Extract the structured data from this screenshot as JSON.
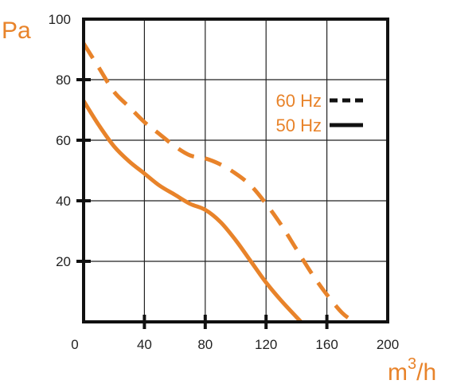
{
  "chart_data": {
    "type": "line",
    "ylabel": "Pa",
    "xlabel_base": "m",
    "xlabel_exp": "3",
    "xlabel_tail": "/h",
    "xlim": [
      0,
      200
    ],
    "ylim": [
      0,
      100
    ],
    "x_ticks": [
      0,
      40,
      80,
      120,
      160,
      200
    ],
    "y_ticks": [
      20,
      40,
      60,
      80,
      100
    ],
    "grid": true,
    "legend_position": "top-right",
    "colors": {
      "curve": "#e8832a",
      "accent_text": "#e8832a",
      "axis": "#111111",
      "grid": "#222222"
    },
    "series": [
      {
        "name": "60 Hz",
        "style": "dashed",
        "x": [
          0,
          10,
          20,
          30,
          40,
          50,
          60,
          70,
          80,
          90,
          100,
          110,
          120,
          130,
          140,
          150,
          160,
          170,
          178
        ],
        "y": [
          92,
          84,
          76,
          71,
          66,
          62,
          58,
          55,
          54,
          52,
          49,
          45,
          39,
          32,
          24,
          16,
          9,
          3,
          0
        ]
      },
      {
        "name": "50 Hz",
        "style": "solid",
        "x": [
          0,
          10,
          20,
          30,
          40,
          50,
          60,
          70,
          80,
          90,
          100,
          110,
          120,
          130,
          143
        ],
        "y": [
          73,
          65,
          58,
          53,
          49,
          45,
          42,
          39,
          37,
          33,
          27,
          20,
          13,
          7,
          0
        ]
      }
    ]
  }
}
